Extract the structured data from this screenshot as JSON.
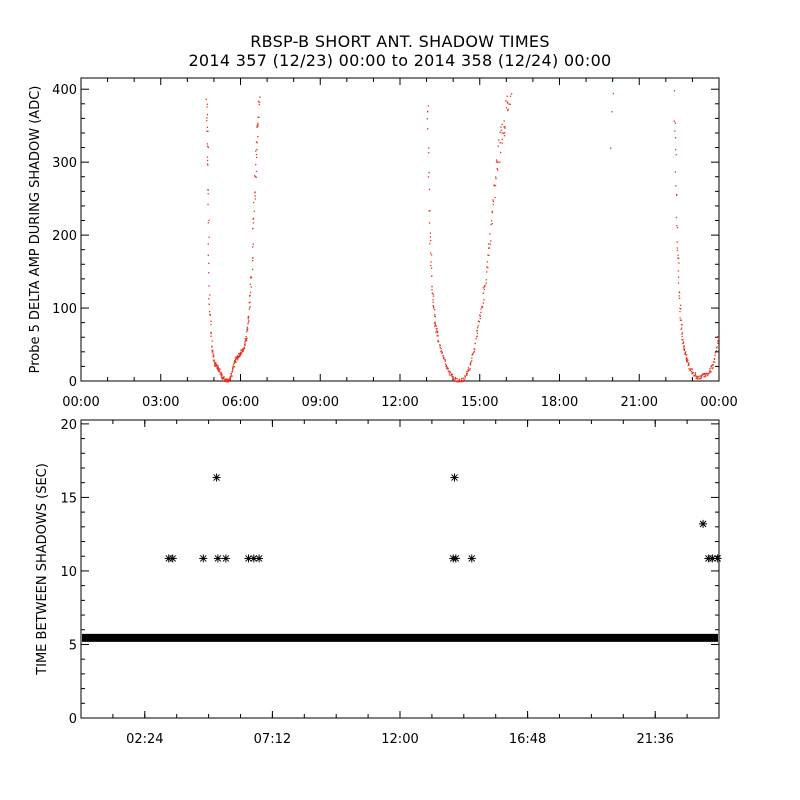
{
  "title_line1": "RBSP-B SHORT ANT. SHADOW TIMES",
  "title_line2": "2014 357 (12/23) 00:00 to 2014 358 (12/24) 00:00",
  "chart_data": [
    {
      "type": "scatter",
      "ylabel": "Probe 5 DELTA AMP DURING SHADOW (ADC)",
      "xlim": [
        0,
        24
      ],
      "ylim": [
        0,
        400
      ],
      "x_ticks": [
        "00:00",
        "03:00",
        "06:00",
        "09:00",
        "12:00",
        "15:00",
        "18:00",
        "21:00",
        "00:00"
      ],
      "y_ticks": [
        "0",
        "100",
        "200",
        "300",
        "400"
      ],
      "color": "#e8321e",
      "shadow_events": [
        {
          "start": 4.6,
          "min_time": 5.5,
          "end": 6.8,
          "floor": 0
        },
        {
          "start": 13.0,
          "min_time": 14.2,
          "end": 16.2,
          "floor": 0
        },
        {
          "start": 22.3,
          "min_time": 23.2,
          "end": 24.0,
          "floor": 5
        }
      ],
      "series": [
        {
          "x": [
            4.7,
            4.75,
            4.8,
            4.9,
            5.0,
            5.1,
            5.2,
            5.3,
            5.4,
            5.5,
            5.6,
            5.7,
            5.8,
            5.9,
            6.0,
            6.1,
            6.2,
            6.3,
            6.4,
            6.5,
            6.6,
            6.7
          ],
          "y": [
            380,
            300,
            120,
            45,
            25,
            20,
            15,
            5,
            2,
            0,
            5,
            20,
            30,
            35,
            40,
            45,
            60,
            90,
            150,
            250,
            330,
            400
          ]
        },
        {
          "x": [
            13.0,
            13.1,
            13.2,
            13.3,
            13.4,
            13.6,
            13.8,
            14.0,
            14.2,
            14.4,
            14.6,
            14.8,
            15.0,
            15.2,
            15.4,
            15.6,
            15.8,
            16.0,
            16.2
          ],
          "y": [
            400,
            200,
            120,
            80,
            60,
            35,
            15,
            5,
            0,
            3,
            20,
            50,
            90,
            140,
            210,
            290,
            340,
            380,
            400
          ]
        },
        {
          "x": [
            22.3,
            22.4,
            22.5,
            22.6,
            22.7,
            22.8,
            23.0,
            23.2,
            23.4,
            23.6,
            23.8,
            24.0
          ],
          "y": [
            400,
            200,
            110,
            60,
            40,
            25,
            12,
            5,
            8,
            12,
            25,
            70
          ]
        }
      ],
      "isolated_points": [
        {
          "x": 19.95,
          "y": 370
        },
        {
          "x": 19.9,
          "y": 320
        },
        {
          "x": 20.0,
          "y": 395
        }
      ]
    },
    {
      "type": "scatter",
      "ylabel": "TIME BETWEEN SHADOWS (SEC)",
      "xlim": [
        0,
        24
      ],
      "ylim": [
        0,
        20
      ],
      "x_ticks": [
        "02:24",
        "07:12",
        "12:00",
        "16:48",
        "21:36"
      ],
      "x_tick_values": [
        2.4,
        7.2,
        12.0,
        16.8,
        21.6
      ],
      "y_ticks": [
        "0",
        "5",
        "10",
        "15",
        "20"
      ],
      "baseline_value": 5.45,
      "marker": "*",
      "points": [
        {
          "x": 3.3,
          "y": 10.85
        },
        {
          "x": 3.45,
          "y": 10.85
        },
        {
          "x": 4.6,
          "y": 10.85
        },
        {
          "x": 5.1,
          "y": 16.35
        },
        {
          "x": 5.15,
          "y": 10.85
        },
        {
          "x": 5.45,
          "y": 10.85
        },
        {
          "x": 6.3,
          "y": 10.85
        },
        {
          "x": 6.5,
          "y": 10.85
        },
        {
          "x": 6.7,
          "y": 10.85
        },
        {
          "x": 14.05,
          "y": 16.35
        },
        {
          "x": 14.0,
          "y": 10.85
        },
        {
          "x": 14.1,
          "y": 10.85
        },
        {
          "x": 14.7,
          "y": 10.85
        },
        {
          "x": 23.4,
          "y": 13.2
        },
        {
          "x": 23.6,
          "y": 10.85
        },
        {
          "x": 23.75,
          "y": 10.85
        },
        {
          "x": 23.95,
          "y": 10.85
        }
      ]
    }
  ]
}
